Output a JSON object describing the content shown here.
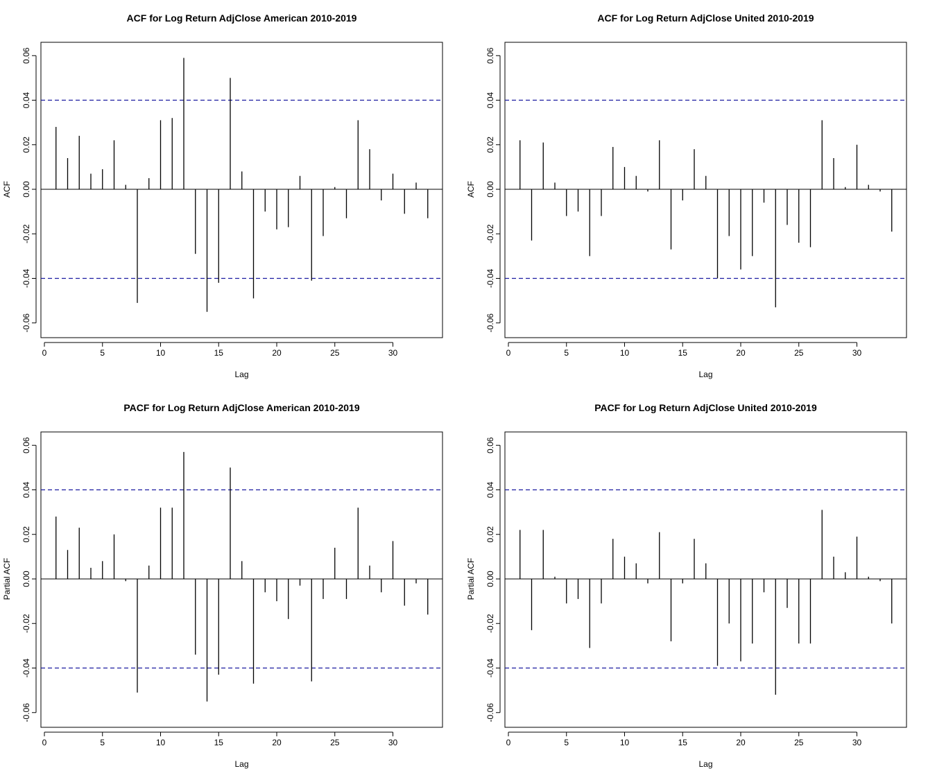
{
  "chart_data": [
    {
      "type": "bar",
      "title": "ACF for Log Return AdjClose American 2010-2019",
      "xlabel": "Lag",
      "ylabel": "ACF",
      "xlim": [
        0,
        34
      ],
      "ylim": [
        -0.066,
        0.066
      ],
      "xticks": [
        "0",
        "5",
        "10",
        "15",
        "20",
        "25",
        "30"
      ],
      "yticks": [
        "-0.06",
        "-0.04",
        "-0.02",
        "0.00",
        "0.02",
        "0.04",
        "0.06"
      ],
      "confidence_bounds": [
        0.04,
        -0.04
      ],
      "grid": false,
      "x": [
        1,
        2,
        3,
        4,
        5,
        6,
        7,
        8,
        9,
        10,
        11,
        12,
        13,
        14,
        15,
        16,
        17,
        18,
        19,
        20,
        21,
        22,
        23,
        24,
        25,
        26,
        27,
        28,
        29,
        30,
        31,
        32,
        33
      ],
      "values": [
        0.028,
        0.014,
        0.024,
        0.007,
        0.009,
        0.022,
        0.002,
        -0.051,
        0.005,
        0.031,
        0.032,
        0.059,
        -0.029,
        -0.055,
        -0.042,
        0.05,
        0.008,
        -0.049,
        -0.01,
        -0.018,
        -0.017,
        0.006,
        -0.041,
        -0.021,
        0.001,
        -0.013,
        0.031,
        0.018,
        -0.005,
        0.007,
        -0.011,
        0.003,
        -0.013
      ]
    },
    {
      "type": "bar",
      "title": "ACF for Log Return AdjClose United 2010-2019",
      "xlabel": "Lag",
      "ylabel": "ACF",
      "xlim": [
        0,
        34
      ],
      "ylim": [
        -0.066,
        0.066
      ],
      "xticks": [
        "0",
        "5",
        "10",
        "15",
        "20",
        "25",
        "30"
      ],
      "yticks": [
        "-0.06",
        "-0.04",
        "-0.02",
        "0.00",
        "0.02",
        "0.04",
        "0.06"
      ],
      "confidence_bounds": [
        0.04,
        -0.04
      ],
      "grid": false,
      "x": [
        1,
        2,
        3,
        4,
        5,
        6,
        7,
        8,
        9,
        10,
        11,
        12,
        13,
        14,
        15,
        16,
        17,
        18,
        19,
        20,
        21,
        22,
        23,
        24,
        25,
        26,
        27,
        28,
        29,
        30,
        31,
        32,
        33
      ],
      "values": [
        0.022,
        -0.023,
        0.021,
        0.003,
        -0.012,
        -0.01,
        -0.03,
        -0.012,
        0.019,
        0.01,
        0.006,
        -0.001,
        0.022,
        -0.027,
        -0.005,
        0.018,
        0.006,
        -0.04,
        -0.021,
        -0.036,
        -0.03,
        -0.006,
        -0.053,
        -0.016,
        -0.024,
        -0.026,
        0.031,
        0.014,
        0.001,
        0.02,
        0.002,
        -0.001,
        -0.019
      ]
    },
    {
      "type": "bar",
      "title": "PACF for Log Return AdjClose American 2010-2019",
      "xlabel": "Lag",
      "ylabel": "Partial ACF",
      "xlim": [
        0,
        34
      ],
      "ylim": [
        -0.066,
        0.066
      ],
      "xticks": [
        "0",
        "5",
        "10",
        "15",
        "20",
        "25",
        "30"
      ],
      "yticks": [
        "-0.06",
        "-0.04",
        "-0.02",
        "0.00",
        "0.02",
        "0.04",
        "0.06"
      ],
      "confidence_bounds": [
        0.04,
        -0.04
      ],
      "grid": false,
      "x": [
        1,
        2,
        3,
        4,
        5,
        6,
        7,
        8,
        9,
        10,
        11,
        12,
        13,
        14,
        15,
        16,
        17,
        18,
        19,
        20,
        21,
        22,
        23,
        24,
        25,
        26,
        27,
        28,
        29,
        30,
        31,
        32,
        33
      ],
      "values": [
        0.028,
        0.013,
        0.023,
        0.005,
        0.008,
        0.02,
        -0.001,
        -0.051,
        0.006,
        0.032,
        0.032,
        0.057,
        -0.034,
        -0.055,
        -0.043,
        0.05,
        0.008,
        -0.047,
        -0.006,
        -0.01,
        -0.018,
        -0.003,
        -0.046,
        -0.009,
        0.014,
        -0.009,
        0.032,
        0.006,
        -0.006,
        0.017,
        -0.012,
        -0.002,
        -0.016
      ]
    },
    {
      "type": "bar",
      "title": "PACF for Log Return AdjClose United 2010-2019",
      "xlabel": "Lag",
      "ylabel": "Partial ACF",
      "xlim": [
        0,
        34
      ],
      "ylim": [
        -0.066,
        0.066
      ],
      "xticks": [
        "0",
        "5",
        "10",
        "15",
        "20",
        "25",
        "30"
      ],
      "yticks": [
        "-0.06",
        "-0.04",
        "-0.02",
        "0.00",
        "0.02",
        "0.04",
        "0.06"
      ],
      "confidence_bounds": [
        0.04,
        -0.04
      ],
      "grid": false,
      "x": [
        1,
        2,
        3,
        4,
        5,
        6,
        7,
        8,
        9,
        10,
        11,
        12,
        13,
        14,
        15,
        16,
        17,
        18,
        19,
        20,
        21,
        22,
        23,
        24,
        25,
        26,
        27,
        28,
        29,
        30,
        31,
        32,
        33
      ],
      "values": [
        0.022,
        -0.023,
        0.022,
        0.001,
        -0.011,
        -0.009,
        -0.031,
        -0.011,
        0.018,
        0.01,
        0.007,
        -0.002,
        0.021,
        -0.028,
        -0.002,
        0.018,
        0.007,
        -0.039,
        -0.02,
        -0.037,
        -0.029,
        -0.006,
        -0.052,
        -0.013,
        -0.029,
        -0.029,
        0.031,
        0.01,
        0.003,
        0.019,
        0.001,
        -0.001,
        -0.02
      ]
    }
  ],
  "colors": {
    "spike": "#000000",
    "zero_line": "#000000",
    "confidence_line": "#1a1aa0",
    "frame": "#000000",
    "background": "#ffffff"
  }
}
